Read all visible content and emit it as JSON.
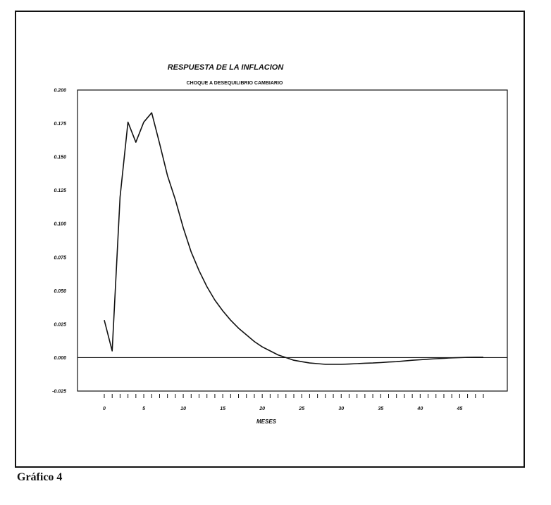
{
  "caption": "Gráfico 4",
  "chart_data": {
    "type": "line",
    "title": "RESPUESTA DE LA INFLACION",
    "subtitle": "CHOQUE A DESEQUILIBRIO CAMBIARIO",
    "xlabel": "MESES",
    "ylabel": "",
    "xlim": [
      0,
      48
    ],
    "ylim": [
      -0.025,
      0.2
    ],
    "yticks": [
      {
        "value": -0.025,
        "label": "-0.025"
      },
      {
        "value": 0.0,
        "label": "0.000"
      },
      {
        "value": 0.025,
        "label": "0.025"
      },
      {
        "value": 0.05,
        "label": "0.050"
      },
      {
        "value": 0.075,
        "label": "0.075"
      },
      {
        "value": 0.1,
        "label": "0.100"
      },
      {
        "value": 0.125,
        "label": "0.125"
      },
      {
        "value": 0.15,
        "label": "0.150"
      },
      {
        "value": 0.175,
        "label": "0.175"
      },
      {
        "value": 0.2,
        "label": "0.200"
      }
    ],
    "xticks": [
      {
        "value": 0,
        "label": "0"
      },
      {
        "value": 5,
        "label": "5"
      },
      {
        "value": 10,
        "label": "10"
      },
      {
        "value": 15,
        "label": "15"
      },
      {
        "value": 20,
        "label": "20"
      },
      {
        "value": 25,
        "label": "25"
      },
      {
        "value": 30,
        "label": "30"
      },
      {
        "value": 35,
        "label": "35"
      },
      {
        "value": 40,
        "label": "40"
      },
      {
        "value": 45,
        "label": "45"
      }
    ],
    "zero_line": true,
    "grid": false,
    "series": [
      {
        "x": [
          0,
          1,
          2,
          3,
          4,
          5,
          6,
          7,
          8,
          9,
          10,
          11,
          12,
          13,
          14,
          15,
          16,
          17,
          18,
          19,
          20,
          21,
          22,
          23,
          24,
          25,
          26,
          27,
          28,
          29,
          30,
          31,
          32,
          33,
          34,
          35,
          36,
          37,
          38,
          39,
          40,
          41,
          42,
          43,
          44,
          45,
          46,
          47,
          48
        ],
        "values": [
          0.028,
          0.005,
          0.12,
          0.176,
          0.161,
          0.176,
          0.183,
          0.16,
          0.136,
          0.118,
          0.097,
          0.079,
          0.065,
          0.053,
          0.043,
          0.035,
          0.028,
          0.022,
          0.017,
          0.012,
          0.008,
          0.005,
          0.002,
          0.0,
          -0.002,
          -0.003,
          -0.004,
          -0.0045,
          -0.005,
          -0.005,
          -0.005,
          -0.0048,
          -0.0045,
          -0.0042,
          -0.004,
          -0.0037,
          -0.0033,
          -0.003,
          -0.0025,
          -0.002,
          -0.0016,
          -0.0012,
          -0.0008,
          -0.0005,
          -0.0002,
          0.0,
          0.0002,
          0.0003,
          0.0003
        ]
      }
    ]
  }
}
